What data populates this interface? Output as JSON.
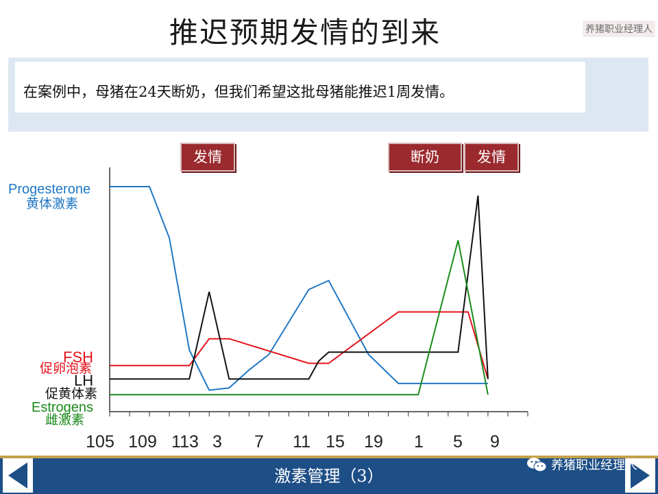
{
  "slide": {
    "title": "推迟预期发情的到来",
    "corner_watermark": "养猪职业经理人",
    "description": "在案例中，母猪在24天断奶，但我们希望这批母猪能推迟1周发情。",
    "tags": [
      "发情",
      "断奶",
      "发情"
    ],
    "footer_title": "激素管理（3）",
    "watermark": "养猪职业经理人"
  },
  "chart_data": {
    "type": "line",
    "title": "",
    "xlabel": "",
    "ylabel": "",
    "x_tick_labels": [
      "105",
      "109",
      "113",
      "3",
      "7",
      "11",
      "15",
      "19",
      "1",
      "5",
      "9"
    ],
    "x_range": [
      104,
      146
    ],
    "y_range": [
      0,
      100
    ],
    "grid": false,
    "legend": "left-inline",
    "colors": {
      "progesterone": "#1f77c4",
      "fsh": "#e3121b",
      "lh": "#111111",
      "estrogens": "#1a8a1a"
    },
    "series": [
      {
        "name": "Progesterone",
        "label_cn": "黄体激素",
        "color_key": "progesterone",
        "x": [
          104,
          108,
          110,
          112,
          114,
          116,
          118,
          120,
          124,
          126,
          130,
          133,
          135,
          140,
          142
        ],
        "y": [
          100,
          100,
          77,
          27,
          9,
          10,
          18,
          25,
          54,
          58,
          25,
          12,
          12,
          12,
          12
        ]
      },
      {
        "name": "FSH",
        "label_cn": "促卵泡素",
        "color_key": "fsh",
        "x": [
          104,
          110,
          112,
          114,
          116,
          124,
          126,
          133,
          135,
          140,
          142
        ],
        "y": [
          20,
          20,
          20,
          32,
          32,
          21,
          21,
          44,
          44,
          44,
          14
        ]
      },
      {
        "name": "LH",
        "label_cn": "促黄体素",
        "color_key": "lh",
        "x": [
          104,
          112,
          114,
          116,
          124,
          125,
          126,
          137,
          139,
          141,
          142
        ],
        "y": [
          14,
          14,
          53,
          14,
          14,
          22,
          26,
          26,
          26,
          96,
          14
        ]
      },
      {
        "name": "Estrogens",
        "label_cn": "雌激素",
        "color_key": "estrogens",
        "x": [
          104,
          134,
          135,
          139,
          142
        ],
        "y": [
          7,
          7,
          7,
          76,
          7
        ]
      }
    ]
  }
}
